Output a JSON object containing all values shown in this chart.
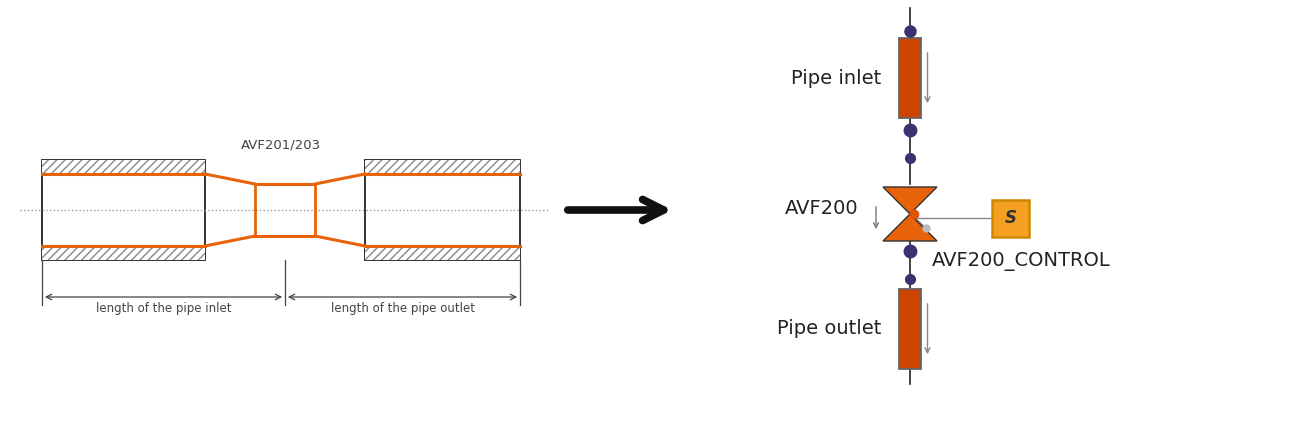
{
  "bg_color": "#ffffff",
  "orange": "#E8620A",
  "pipe_fill": "#CC4400",
  "pipe_border": "#666666",
  "dark_purple": "#3D3070",
  "hatch_color": "#888888",
  "arrow_label": "",
  "pipe_inlet_label": "Pipe inlet",
  "pipe_outlet_label": "Pipe outlet",
  "avf200_label": "AVF200",
  "avf200_control_label": "AVF200_CONTROL",
  "avf201_label": "AVF201/203",
  "length_inlet_label": "length of the pipe inlet",
  "length_outlet_label": "length of the pipe outlet",
  "actuator_fill": "#F5A020",
  "actuator_border": "#CC8800",
  "actuator_letter": "S",
  "line_color": "#222222",
  "dim_line_color": "#444444",
  "center_line_color": "#888888",
  "label_fontsize": 14,
  "small_fontsize": 8.5,
  "avf_fontsize": 9.5
}
